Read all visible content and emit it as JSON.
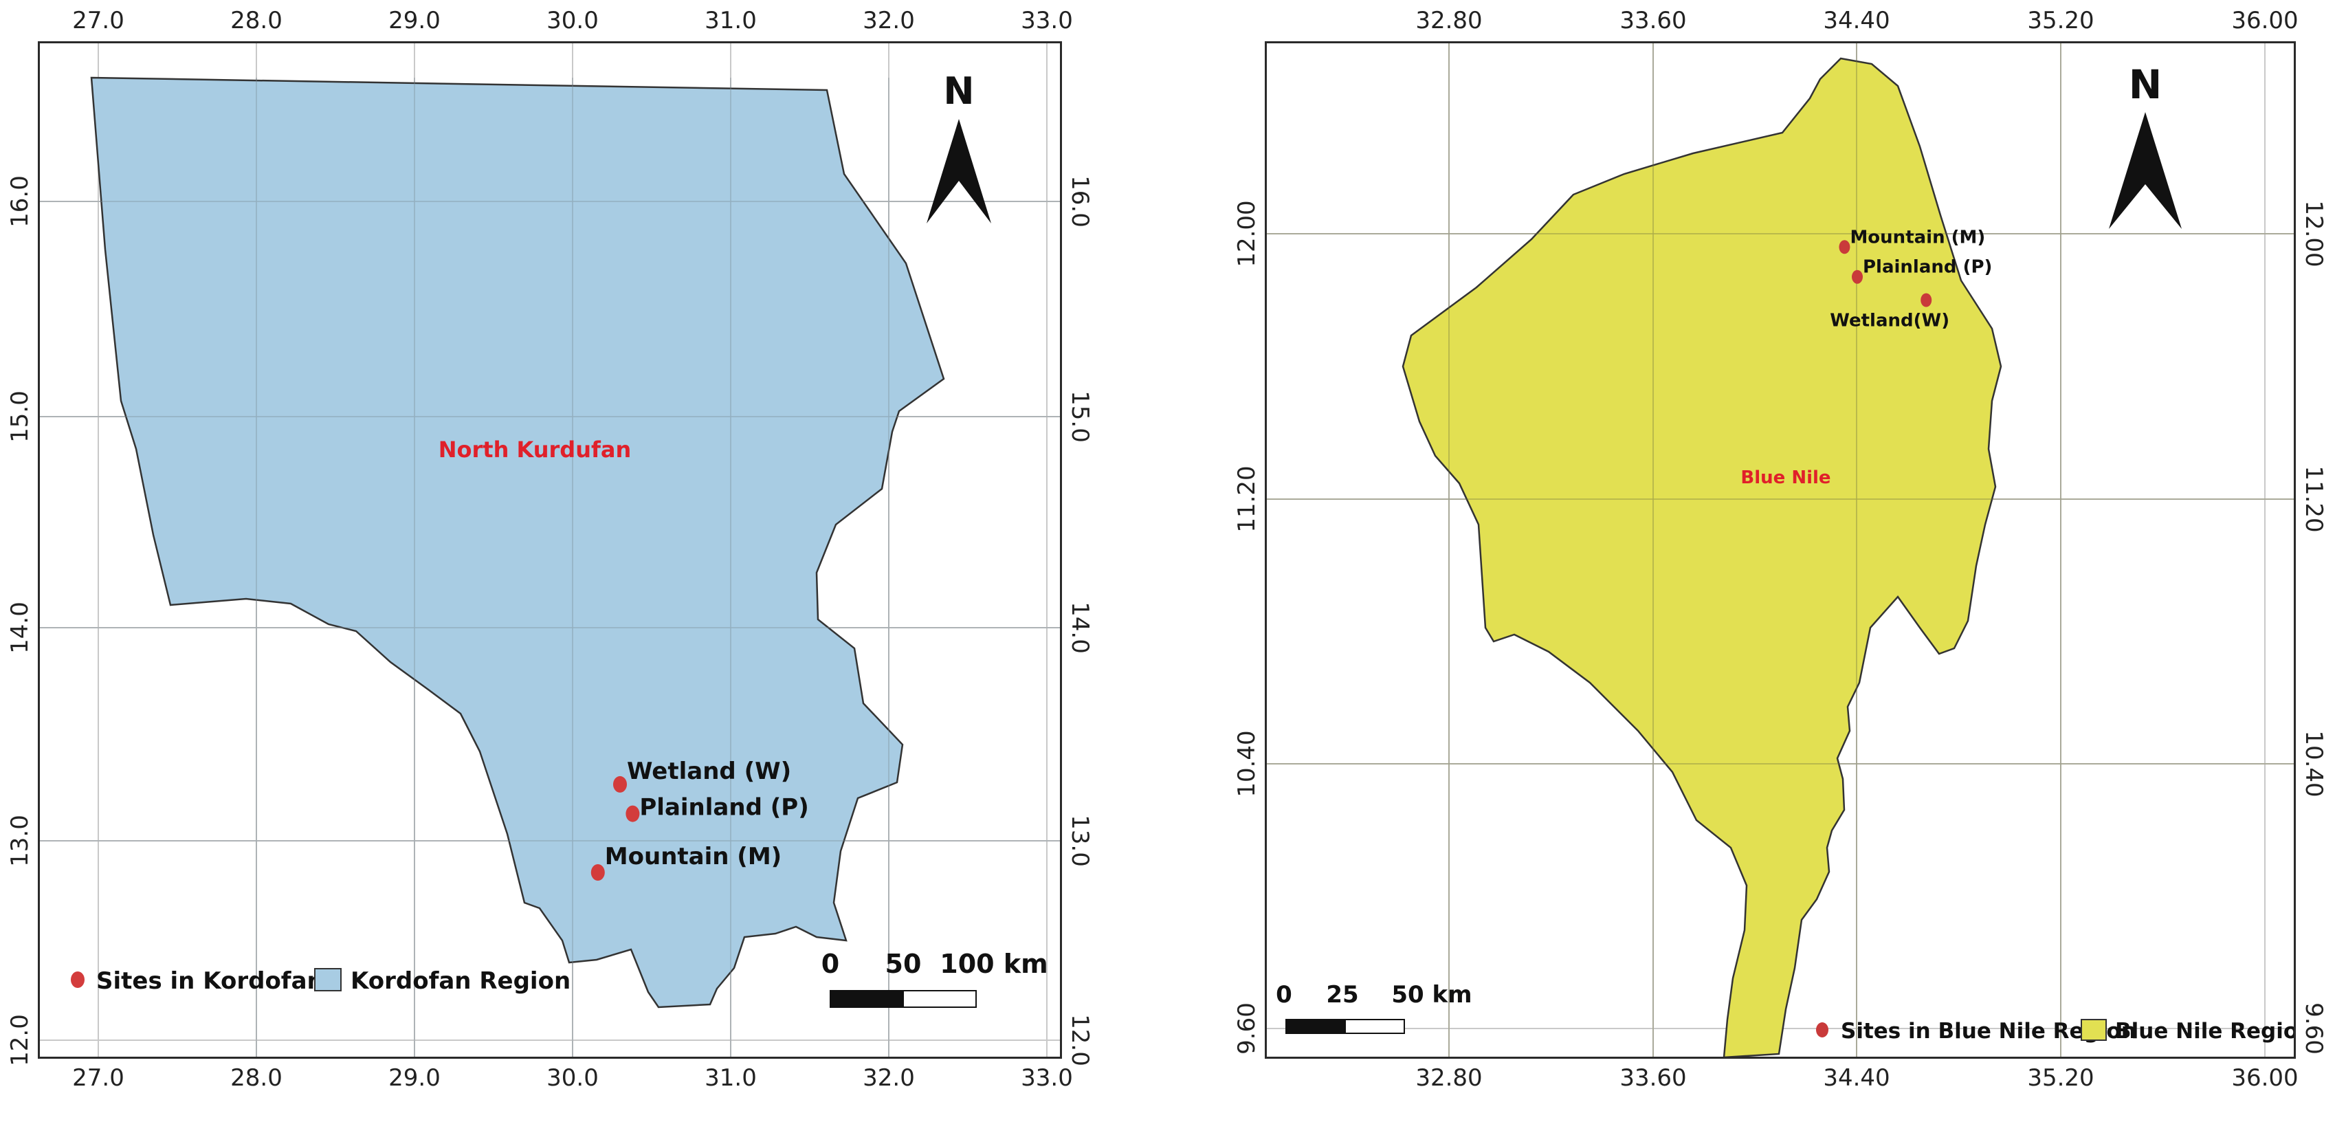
{
  "maps": [
    {
      "region_label": "North Kurdufan",
      "lon_ticks": [
        "27.0",
        "28.0",
        "29.0",
        "30.0",
        "31.0",
        "32.0",
        "33.0"
      ],
      "lat_ticks": [
        "12.0",
        "13.0",
        "14.0",
        "15.0",
        "16.0"
      ],
      "sites": [
        {
          "label": "Wetland (W)",
          "lon": 30.3,
          "lat": 13.22
        },
        {
          "label": "Plainland (P)",
          "lon": 30.38,
          "lat": 13.08
        },
        {
          "label": "Mountain (M)",
          "lon": 30.16,
          "lat": 12.8
        }
      ],
      "scale_labels": [
        "0",
        "50",
        "100 km"
      ],
      "north_label": "N",
      "legend": {
        "sites": "Sites in Kordofan",
        "region": "Kordofan Region"
      },
      "colors": {
        "region": "#a8cce3",
        "site": "#d33c3c"
      }
    },
    {
      "region_label": "Blue Nile",
      "lon_ticks": [
        "32.80",
        "33.60",
        "34.40",
        "35.20",
        "36.00"
      ],
      "lat_ticks": [
        "9.60",
        "10.40",
        "11.20",
        "12.00"
      ],
      "sites": [
        {
          "label": "Mountain (M)",
          "lon": 34.35,
          "lat": 11.96
        },
        {
          "label": "Plainland (P)",
          "lon": 34.4,
          "lat": 11.87
        },
        {
          "label": "Wetland(W)",
          "lon": 34.67,
          "lat": 11.8
        }
      ],
      "scale_labels": [
        "0",
        "25",
        "50 km"
      ],
      "north_label": "N",
      "legend": {
        "sites": "Sites in Blue Nile Region",
        "region": "Blue Nile Region"
      },
      "colors": {
        "region": "#e2e052",
        "site": "#c93a3a"
      }
    }
  ]
}
